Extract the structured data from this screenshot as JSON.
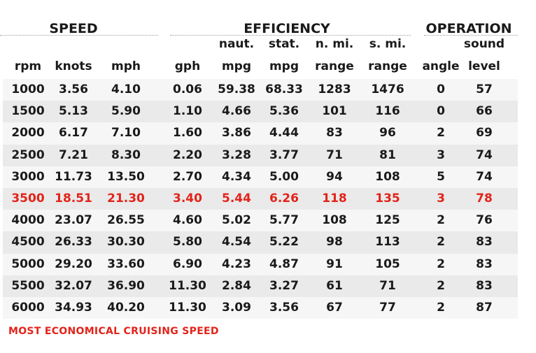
{
  "groups": {
    "speed": "SPEED",
    "efficiency": "EFFICIENCY",
    "operation": "OPERATION"
  },
  "columns": [
    {
      "top": "",
      "bottom": "rpm"
    },
    {
      "top": "",
      "bottom": "knots"
    },
    {
      "top": "",
      "bottom": "mph"
    },
    {
      "top": "",
      "bottom": "gph"
    },
    {
      "top": "naut.",
      "bottom": "mpg"
    },
    {
      "top": "stat.",
      "bottom": "mpg"
    },
    {
      "top": "n. mi.",
      "bottom": "range"
    },
    {
      "top": "s. mi.",
      "bottom": "range"
    },
    {
      "top": "",
      "bottom": "angle"
    },
    {
      "top": "sound",
      "bottom": "level"
    }
  ],
  "rows": [
    [
      "1000",
      "3.56",
      "4.10",
      "0.06",
      "59.38",
      "68.33",
      "1283",
      "1476",
      "0",
      "57"
    ],
    [
      "1500",
      "5.13",
      "5.90",
      "1.10",
      "4.66",
      "5.36",
      "101",
      "116",
      "0",
      "66"
    ],
    [
      "2000",
      "6.17",
      "7.10",
      "1.60",
      "3.86",
      "4.44",
      "83",
      "96",
      "2",
      "69"
    ],
    [
      "2500",
      "7.21",
      "8.30",
      "2.20",
      "3.28",
      "3.77",
      "71",
      "81",
      "3",
      "74"
    ],
    [
      "3000",
      "11.73",
      "13.50",
      "2.70",
      "4.34",
      "5.00",
      "94",
      "108",
      "5",
      "74"
    ],
    [
      "3500",
      "18.51",
      "21.30",
      "3.40",
      "5.44",
      "6.26",
      "118",
      "135",
      "3",
      "78"
    ],
    [
      "4000",
      "23.07",
      "26.55",
      "4.60",
      "5.02",
      "5.77",
      "108",
      "125",
      "2",
      "76"
    ],
    [
      "4500",
      "26.33",
      "30.30",
      "5.80",
      "4.54",
      "5.22",
      "98",
      "113",
      "2",
      "83"
    ],
    [
      "5000",
      "29.20",
      "33.60",
      "6.90",
      "4.23",
      "4.87",
      "91",
      "105",
      "2",
      "83"
    ],
    [
      "5500",
      "32.07",
      "36.90",
      "11.30",
      "2.84",
      "3.27",
      "61",
      "71",
      "2",
      "83"
    ],
    [
      "6000",
      "34.93",
      "40.20",
      "11.30",
      "3.09",
      "3.56",
      "67",
      "77",
      "2",
      "87"
    ]
  ],
  "highlight_rpm": "3500",
  "highlight_color": "#e2231a",
  "footnote": "MOST ECONOMICAL CRUISING SPEED"
}
